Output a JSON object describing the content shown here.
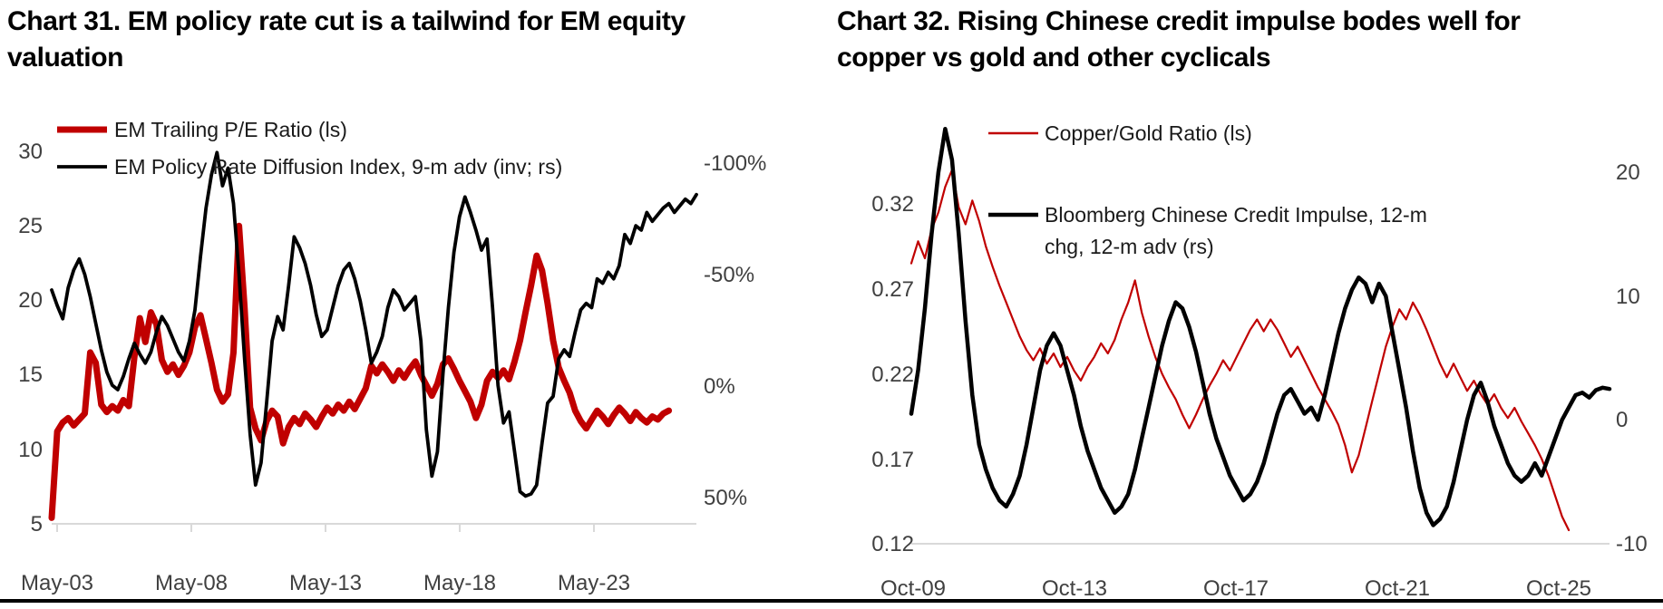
{
  "page": {
    "background_color": "#ffffff",
    "footer_rule_color": "#000000",
    "accent_red": "#c00000",
    "tick_text_color": "#404040",
    "axis_line_color": "#d9d9d9"
  },
  "chart_data": [
    {
      "id": "chart-31",
      "type": "line",
      "title": "Chart 31. EM policy rate cut is a tailwind for EM equity valuation",
      "x_axis": {
        "tick_labels": [
          "May-03",
          "May-08",
          "May-13",
          "May-18",
          "May-23"
        ]
      },
      "left_axis": {
        "tick_labels": [
          "30",
          "25",
          "20",
          "15",
          "10",
          "5"
        ],
        "range": [
          5,
          30
        ]
      },
      "right_axis": {
        "tick_labels": [
          "-100%",
          "-50%",
          "0%",
          "50%"
        ],
        "range": [
          -112.5,
          62.5
        ],
        "note": "inverted"
      },
      "legend_position": "top-left",
      "grid": false,
      "series": [
        {
          "name": "EM Trailing P/E Ratio (ls)",
          "axis": "left",
          "color": "#c00000",
          "line_width": 7,
          "values": [
            5.4,
            11.2,
            11.8,
            12.1,
            11.6,
            12.0,
            12.4,
            16.5,
            15.8,
            13.0,
            12.5,
            12.9,
            12.6,
            13.3,
            12.9,
            16.2,
            18.8,
            17.2,
            19.2,
            18.4,
            16.0,
            15.2,
            15.7,
            15.0,
            15.6,
            16.5,
            18.2,
            19.0,
            17.4,
            15.8,
            14.0,
            13.2,
            13.7,
            16.5,
            25.0,
            19.5,
            12.8,
            11.4,
            10.6,
            11.9,
            12.6,
            12.2,
            10.4,
            11.5,
            12.1,
            11.7,
            12.4,
            12.0,
            11.5,
            12.2,
            12.8,
            12.4,
            13.0,
            12.6,
            13.2,
            12.7,
            13.4,
            14.1,
            15.6,
            15.1,
            15.7,
            15.2,
            14.6,
            15.3,
            14.8,
            15.4,
            15.9,
            15.0,
            14.3,
            13.6,
            14.4,
            15.7,
            16.1,
            15.4,
            14.6,
            13.9,
            13.2,
            12.1,
            13.0,
            14.6,
            15.2,
            14.8,
            15.3,
            14.7,
            15.9,
            17.3,
            19.2,
            21.0,
            23.0,
            22.0,
            19.8,
            17.3,
            15.5,
            14.6,
            13.8,
            12.6,
            11.9,
            11.4,
            12.0,
            12.6,
            12.2,
            11.7,
            12.3,
            12.8,
            12.4,
            11.9,
            12.5,
            12.1,
            11.8,
            12.2,
            12.0,
            12.4,
            12.6,
            null,
            null,
            null,
            null,
            null
          ]
        },
        {
          "name": "EM Policy Rate Diffusion Index, 9-m adv (inv; rs)",
          "axis": "right",
          "color": "#000000",
          "line_width": 3.8,
          "values": [
            -43,
            -36,
            -30,
            -44,
            -52,
            -57,
            -50,
            -40,
            -28,
            -16,
            -6,
            0,
            2,
            -4,
            -12,
            -19,
            -14,
            -10,
            -15,
            -24,
            -31,
            -27,
            -21,
            -15,
            -11,
            -20,
            -34,
            -58,
            -80,
            -95,
            -105,
            -90,
            -98,
            -82,
            -50,
            -12,
            22,
            45,
            35,
            8,
            -20,
            -31,
            -25,
            -45,
            -67,
            -62,
            -55,
            -45,
            -32,
            -22,
            -25,
            -35,
            -45,
            -52,
            -55,
            -48,
            -38,
            -25,
            -10,
            -15,
            -22,
            -35,
            -43,
            -40,
            -34,
            -37,
            -40,
            -20,
            20,
            41,
            30,
            -5,
            -35,
            -60,
            -76,
            -85,
            -78,
            -70,
            -61,
            -66,
            -35,
            0,
            17,
            12,
            30,
            48,
            50,
            49,
            45,
            26,
            8,
            5,
            -12,
            -16,
            -13,
            -24,
            -34,
            -37,
            -35,
            -48,
            -46,
            -51,
            -48,
            -54,
            -68,
            -64,
            -72,
            -70,
            -78,
            -74,
            -77,
            -80,
            -82,
            -78,
            -81,
            -84,
            -82,
            -86
          ]
        }
      ]
    },
    {
      "id": "chart-32",
      "type": "line",
      "title": "Chart 32. Rising Chinese credit impulse bodes well for copper vs gold and other cyclicals",
      "x_axis": {
        "tick_labels": [
          "Oct-09",
          "Oct-13",
          "Oct-17",
          "Oct-21",
          "Oct-25"
        ]
      },
      "left_axis": {
        "tick_labels": [
          "0.32",
          "0.27",
          "0.22",
          "0.17",
          "0.12"
        ],
        "range": [
          0.12,
          0.32
        ]
      },
      "right_axis": {
        "tick_labels": [
          "20",
          "10",
          "0",
          "-10"
        ],
        "range": [
          -10,
          20
        ]
      },
      "legend_position": "top-center",
      "grid": false,
      "series": [
        {
          "name": "Copper/Gold Ratio (ls)",
          "axis": "left",
          "color": "#c00000",
          "line_width": 2.2,
          "values": [
            0.285,
            0.298,
            0.288,
            0.305,
            0.315,
            0.33,
            0.34,
            0.318,
            0.308,
            0.322,
            0.31,
            0.295,
            0.283,
            0.272,
            0.262,
            0.252,
            0.242,
            0.234,
            0.228,
            0.235,
            0.226,
            0.232,
            0.224,
            0.23,
            0.222,
            0.216,
            0.224,
            0.23,
            0.238,
            0.232,
            0.24,
            0.252,
            0.262,
            0.275,
            0.256,
            0.242,
            0.23,
            0.22,
            0.212,
            0.205,
            0.196,
            0.188,
            0.196,
            0.205,
            0.213,
            0.22,
            0.228,
            0.222,
            0.23,
            0.238,
            0.246,
            0.252,
            0.245,
            0.252,
            0.246,
            0.238,
            0.23,
            0.236,
            0.228,
            0.22,
            0.212,
            0.205,
            0.198,
            0.19,
            0.178,
            0.162,
            0.172,
            0.188,
            0.204,
            0.22,
            0.236,
            0.248,
            0.258,
            0.252,
            0.262,
            0.255,
            0.246,
            0.236,
            0.226,
            0.218,
            0.226,
            0.218,
            0.21,
            0.216,
            0.208,
            0.202,
            0.208,
            0.2,
            0.194,
            0.2,
            0.192,
            0.185,
            0.178,
            0.17,
            0.16,
            0.148,
            0.136,
            0.128,
            null,
            null,
            null,
            null,
            null,
            null
          ]
        },
        {
          "name": "Bloomberg Chinese Credit Impulse, 12-m chg, 12-m adv (rs)",
          "axis": "right",
          "color": "#000000",
          "line_width": 4.5,
          "values": [
            0.5,
            4,
            9,
            15,
            20,
            23.5,
            21,
            15,
            8,
            2,
            -2,
            -4,
            -5.5,
            -6.5,
            -7,
            -6,
            -4.5,
            -2,
            1,
            4,
            6,
            7,
            6,
            4,
            2,
            -0.5,
            -2.5,
            -4,
            -5.5,
            -6.5,
            -7.5,
            -7,
            -6,
            -4,
            -1.5,
            1,
            3.5,
            6,
            8,
            9.5,
            9,
            7.5,
            5.5,
            3,
            0.5,
            -1.5,
            -3,
            -4.5,
            -5.5,
            -6.5,
            -6,
            -5,
            -3.5,
            -1.5,
            0.5,
            2,
            2.5,
            1.5,
            0.5,
            1,
            0,
            2,
            4.5,
            7,
            9,
            10.5,
            11.5,
            11,
            9.5,
            11,
            10,
            7,
            4,
            1,
            -2.5,
            -5.5,
            -7.5,
            -8.5,
            -8,
            -7,
            -5,
            -2.5,
            0,
            2,
            3,
            1.5,
            -0.5,
            -2,
            -3.5,
            -4.5,
            -5,
            -4.5,
            -3.5,
            -4.5,
            -3,
            -1.5,
            0,
            1,
            2,
            2.2,
            1.8,
            2.4,
            2.6,
            2.5
          ]
        }
      ]
    }
  ]
}
